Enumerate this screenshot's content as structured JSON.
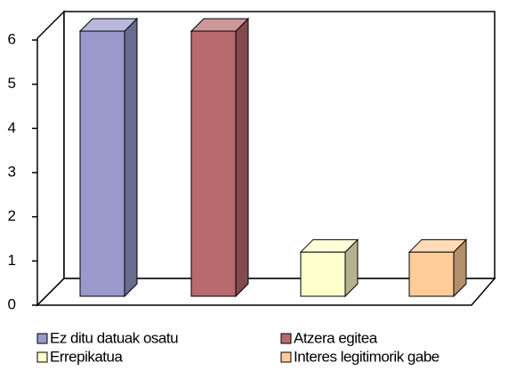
{
  "chart_data": {
    "type": "bar3d",
    "categories": [
      null
    ],
    "series": [
      {
        "name": "Ez ditu datuak osatu",
        "color": "#9999cc",
        "values": [
          6
        ]
      },
      {
        "name": "Atzera egitea",
        "color": "#b96a6e",
        "values": [
          6
        ]
      },
      {
        "name": "Errepikatua",
        "color": "#ffffcc",
        "values": [
          1
        ]
      },
      {
        "name": "Interes legitimorik gabe",
        "color": "#ffcc99",
        "values": [
          1
        ]
      }
    ],
    "ylim": [
      0,
      6
    ],
    "yticks": [
      0,
      1,
      2,
      3,
      4,
      5,
      6
    ],
    "grid": false,
    "legend": "bottom"
  }
}
